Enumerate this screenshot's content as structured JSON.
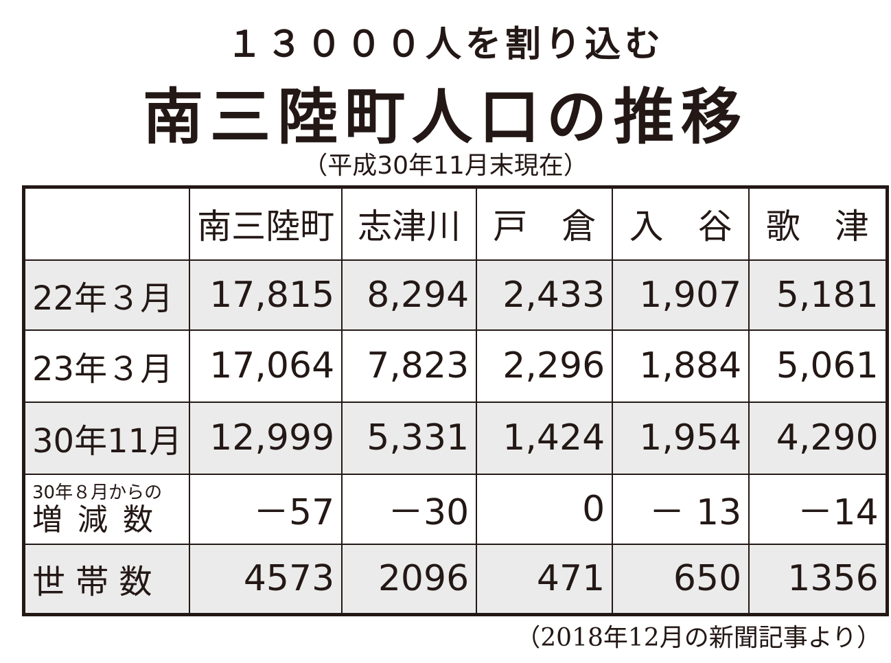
{
  "header": {
    "supertitle": "１３０００人を割り込む",
    "title": "南三陸町人口の推移",
    "subtitle": "（平成30年11月末現在）"
  },
  "table": {
    "columns": [
      "南三陸町",
      "志津川",
      "戸　倉",
      "入　谷",
      "歌　津"
    ],
    "rows": [
      {
        "label": [
          "22年３月"
        ],
        "cells": [
          "17,815",
          "8,294",
          "2,433",
          "1,907",
          "5,181"
        ]
      },
      {
        "label": [
          "23年３月"
        ],
        "cells": [
          "17,064",
          "7,823",
          "2,296",
          "1,884",
          "5,061"
        ]
      },
      {
        "label": [
          "30年11月"
        ],
        "cells": [
          "12,999",
          "5,331",
          "1,424",
          "1,954",
          "4,290"
        ]
      },
      {
        "label": [
          "30年８月からの",
          "増 減 数"
        ],
        "cells": [
          "－57",
          "－30",
          "0",
          "－ 13",
          "－14"
        ]
      },
      {
        "label": [
          "世 帯 数"
        ],
        "cells": [
          "4573",
          "2096",
          "471",
          "650",
          "1356"
        ]
      }
    ]
  },
  "footer": {
    "source": "（2018年12月の新聞記事より）"
  }
}
